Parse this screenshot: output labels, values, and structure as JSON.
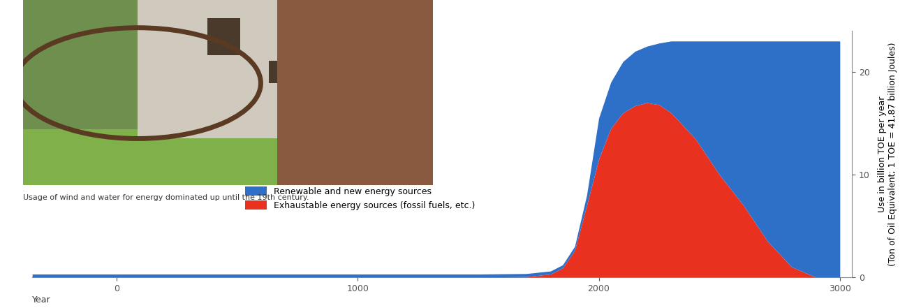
{
  "chart_data": {
    "type": "area",
    "stacked": true,
    "x": [
      -350,
      0,
      500,
      1000,
      1500,
      1700,
      1800,
      1850,
      1900,
      1950,
      2000,
      2050,
      2100,
      2150,
      2200,
      2250,
      2300,
      2400,
      2500,
      2600,
      2700,
      2800,
      2900,
      3000
    ],
    "xlim": [
      -350,
      3050
    ],
    "xticks": [
      0,
      1000,
      2000,
      3000
    ],
    "xlabel": "Year",
    "ylim": [
      0,
      24
    ],
    "yticks": [
      0,
      10,
      20
    ],
    "ylabel": "Use in billion TOE per year\n(Ton of Oil Equivalent; 1 TOE = 41,87 billion Joules)",
    "series": [
      {
        "name": "Renewable and new energy sources",
        "color": "#2e6fc8",
        "values": [
          0.3,
          0.3,
          0.3,
          0.3,
          0.3,
          0.3,
          0.3,
          0.3,
          0.4,
          1,
          4,
          4.5,
          5,
          5.3,
          5.5,
          6,
          7,
          9.5,
          13,
          16,
          19.5,
          22,
          23,
          23
        ]
      },
      {
        "name": "Exhaustable energy sources (fossil fuels, etc.)",
        "color": "#e8311f",
        "values": [
          0,
          0,
          0,
          0,
          0,
          0.05,
          0.3,
          0.9,
          2.6,
          7,
          11.5,
          14.5,
          16,
          16.7,
          17,
          16.8,
          16,
          13.5,
          10,
          7,
          3.5,
          1,
          0,
          0
        ]
      }
    ],
    "legend": "center left",
    "annotations": [
      "Usage of wind and water for energy dominated up until the 19th century."
    ]
  }
}
